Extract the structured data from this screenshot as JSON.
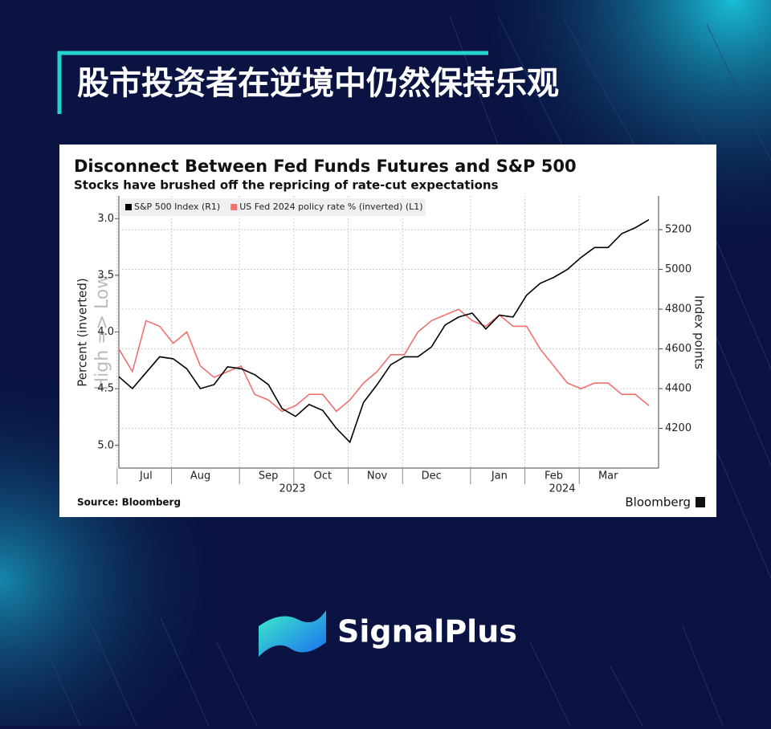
{
  "header": {
    "title": "股市投资者在逆境中仍然保持乐观"
  },
  "chart_data": {
    "type": "line",
    "title": "Disconnect Between Fed Funds Futures and S&P 500",
    "subtitle": "Stocks have brushed off the repricing of rate-cut expectations",
    "categories": [
      null,
      null,
      "Jul",
      null,
      null,
      null,
      "Aug",
      null,
      null,
      null,
      null,
      "Sep",
      null,
      null,
      null,
      "Oct",
      null,
      null,
      null,
      "Nov",
      null,
      null,
      null,
      "Dec",
      null,
      null,
      null,
      null,
      "Jan",
      null,
      null,
      null,
      "Feb",
      null,
      null,
      null,
      "Mar",
      null,
      null,
      null
    ],
    "x_group_labels": [
      "2023",
      "2024"
    ],
    "series": [
      {
        "name": "S&P 500 Index (R1)",
        "color": "#000000",
        "axis": "y2",
        "values": [
          4460,
          4400,
          4480,
          4560,
          4550,
          4500,
          4400,
          4420,
          4510,
          4500,
          4470,
          4420,
          4300,
          4260,
          4320,
          4290,
          4200,
          4130,
          4330,
          4420,
          4520,
          4560,
          4560,
          4610,
          4720,
          4760,
          4780,
          4700,
          4770,
          4760,
          4870,
          4930,
          4960,
          5000,
          5060,
          5110,
          5110,
          5180,
          5210,
          5250
        ]
      },
      {
        "name": "US Fed 2024 policy rate % (inverted) (L1)",
        "color": "#f07070",
        "values": [
          4.15,
          4.35,
          3.9,
          3.95,
          4.1,
          4.0,
          4.3,
          4.4,
          4.35,
          4.3,
          4.55,
          4.6,
          4.7,
          4.65,
          4.55,
          4.55,
          4.7,
          4.6,
          4.45,
          4.35,
          4.2,
          4.2,
          4.0,
          3.9,
          3.85,
          3.8,
          3.9,
          3.95,
          3.85,
          3.95,
          3.95,
          4.15,
          4.3,
          4.45,
          4.5,
          4.45,
          4.45,
          4.55,
          4.55,
          4.65
        ]
      }
    ],
    "y_label": "Percent (inverted)",
    "y_label_note": "High => Low",
    "y2_label": "Index points",
    "ylim": [
      2.8,
      5.2
    ],
    "y_inverted": true,
    "yticks": [
      {
        "value": 3.0,
        "label": "3.0"
      },
      {
        "value": 3.5,
        "label": "3.5"
      },
      {
        "value": 4.0,
        "label": "4.0"
      },
      {
        "value": 4.5,
        "label": "4.5"
      },
      {
        "value": 5.0,
        "label": "5.0"
      }
    ],
    "y2lim": [
      4000,
      5370
    ],
    "y2ticks": [
      4200,
      4400,
      4600,
      4800,
      5000,
      5200
    ],
    "grid": true,
    "legend": "top-left",
    "source": "Source: Bloomberg",
    "logo": "Bloomberg"
  },
  "footer": {
    "brand": "SignalPlus"
  }
}
